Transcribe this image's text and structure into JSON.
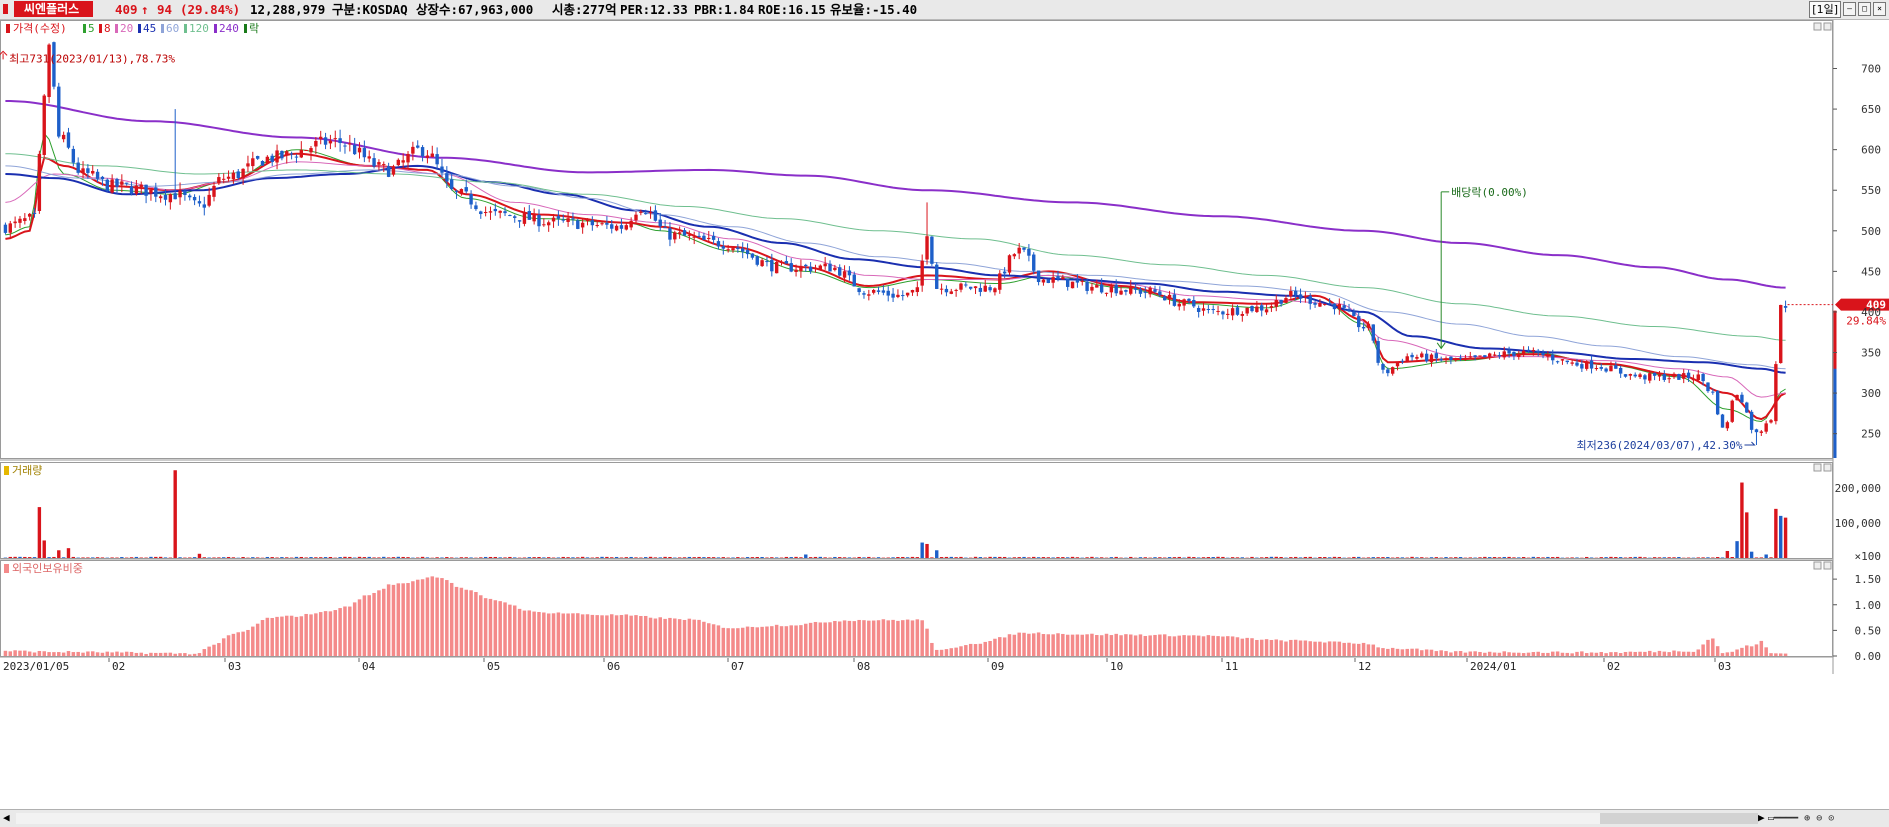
{
  "header": {
    "stock_name": "씨엔플러스",
    "price": "409",
    "change_arrow": "↑",
    "change": "94",
    "change_pct": "(29.84%)",
    "volume": "12,288,979",
    "market": "구분:KOSDAQ",
    "shares": "상장수:67,963,000",
    "market_cap": "시총:277억",
    "per": "PER:12.33",
    "pbr": "PBR:1.84",
    "roe": "ROE:16.15",
    "float": "유보율:-15.40",
    "period": "[1일]"
  },
  "colors": {
    "up": "#d9141b",
    "down": "#1d5fc9",
    "ma5": "#2ea02e",
    "ma8": "#d9141b",
    "ma20": "#d868b9",
    "ma45": "#1a2fb0",
    "ma60": "#8fa4d8",
    "ma120": "#6fbf8f",
    "ma240": "#8a2fc9",
    "foreign": "#f48a8a"
  },
  "price_panel": {
    "legend": [
      {
        "text": "가격(수정)",
        "color": "#d9141b"
      },
      {
        "text": "5",
        "color": "#2ea02e"
      },
      {
        "text": "8",
        "color": "#d9141b"
      },
      {
        "text": "20",
        "color": "#d868b9"
      },
      {
        "text": "45",
        "color": "#1a2fb0"
      },
      {
        "text": "60",
        "color": "#8fa4d8"
      },
      {
        "text": "120",
        "color": "#6fbf8f"
      },
      {
        "text": "240",
        "color": "#8a2fc9"
      },
      {
        "text": "락",
        "color": "#1a7a1a"
      }
    ],
    "high_note": "최고731(2023/01/13),78.73%",
    "low_note": "최저236(2024/03/07),42.30%",
    "dividend_note": "배당락(0.00%)",
    "y_ticks": [
      "700",
      "650",
      "600",
      "550",
      "500",
      "450",
      "400",
      "350",
      "300",
      "250"
    ],
    "last_price_tag": "409",
    "last_pct_tag": "29.84%"
  },
  "volume_panel": {
    "label": "거래량",
    "y_ticks": [
      "200,000",
      "100,000",
      "×100"
    ]
  },
  "foreign_panel": {
    "label": "외국인보유비중",
    "y_ticks": [
      "1.50",
      "1.00",
      "0.50",
      "0.00"
    ]
  },
  "x_ticks": [
    "2023/01/05",
    "02",
    "03",
    "04",
    "05",
    "06",
    "07",
    "08",
    "09",
    "10",
    "11",
    "12",
    "2024/01",
    "02",
    "03"
  ],
  "chart_data": {
    "type": "candlestick",
    "x_range": [
      "2023/01/05",
      "2024/03/13"
    ],
    "price_ylim": [
      220,
      745
    ],
    "volume_ylim": [
      0,
      245000
    ],
    "foreign_ylim": [
      0,
      1.6
    ],
    "price_anchors": [
      [
        0,
        505
      ],
      [
        6,
        515
      ],
      [
        8,
        660
      ],
      [
        9,
        731
      ],
      [
        11,
        615
      ],
      [
        16,
        570
      ],
      [
        22,
        555
      ],
      [
        35,
        545
      ],
      [
        40,
        530
      ],
      [
        45,
        565
      ],
      [
        55,
        590
      ],
      [
        68,
        610
      ],
      [
        79,
        575
      ],
      [
        86,
        600
      ],
      [
        93,
        545
      ],
      [
        101,
        520
      ],
      [
        115,
        510
      ],
      [
        127,
        505
      ],
      [
        131,
        530
      ],
      [
        137,
        495
      ],
      [
        147,
        485
      ],
      [
        160,
        455
      ],
      [
        170,
        455
      ],
      [
        178,
        425
      ],
      [
        185,
        420
      ],
      [
        188,
        425
      ],
      [
        190,
        500
      ],
      [
        192,
        430
      ],
      [
        203,
        430
      ],
      [
        209,
        475
      ],
      [
        214,
        440
      ],
      [
        226,
        430
      ],
      [
        236,
        425
      ],
      [
        243,
        410
      ],
      [
        249,
        400
      ],
      [
        259,
        405
      ],
      [
        265,
        420
      ],
      [
        273,
        410
      ],
      [
        281,
        380
      ],
      [
        284,
        325
      ],
      [
        289,
        345
      ],
      [
        299,
        340
      ],
      [
        313,
        350
      ],
      [
        326,
        335
      ],
      [
        338,
        320
      ],
      [
        349,
        320
      ],
      [
        352,
        300
      ],
      [
        354,
        255
      ],
      [
        357,
        300
      ],
      [
        361,
        250
      ],
      [
        364,
        270
      ],
      [
        366,
        405
      ],
      [
        367,
        409
      ]
    ],
    "ma_anchors": {
      "ma5": [
        [
          0,
          495
        ],
        [
          5,
          505
        ],
        [
          8,
          620
        ],
        [
          12,
          570
        ],
        [
          22,
          550
        ],
        [
          35,
          545
        ],
        [
          45,
          560
        ],
        [
          60,
          600
        ],
        [
          75,
          580
        ],
        [
          87,
          575
        ],
        [
          95,
          540
        ],
        [
          110,
          515
        ],
        [
          128,
          510
        ],
        [
          135,
          500
        ],
        [
          150,
          475
        ],
        [
          165,
          450
        ],
        [
          178,
          430
        ],
        [
          190,
          440
        ],
        [
          205,
          435
        ],
        [
          215,
          445
        ],
        [
          230,
          430
        ],
        [
          245,
          410
        ],
        [
          260,
          405
        ],
        [
          270,
          420
        ],
        [
          280,
          385
        ],
        [
          285,
          330
        ],
        [
          300,
          340
        ],
        [
          315,
          350
        ],
        [
          330,
          335
        ],
        [
          345,
          320
        ],
        [
          355,
          280
        ],
        [
          362,
          265
        ],
        [
          367,
          305
        ]
      ],
      "ma8": [
        [
          0,
          490
        ],
        [
          5,
          500
        ],
        [
          8,
          590
        ],
        [
          12,
          580
        ],
        [
          22,
          555
        ],
        [
          35,
          550
        ],
        [
          45,
          560
        ],
        [
          60,
          595
        ],
        [
          75,
          580
        ],
        [
          87,
          575
        ],
        [
          95,
          545
        ],
        [
          110,
          520
        ],
        [
          128,
          510
        ],
        [
          135,
          505
        ],
        [
          150,
          480
        ],
        [
          165,
          455
        ],
        [
          178,
          432
        ],
        [
          190,
          445
        ],
        [
          205,
          440
        ],
        [
          215,
          450
        ],
        [
          230,
          432
        ],
        [
          245,
          412
        ],
        [
          260,
          410
        ],
        [
          270,
          420
        ],
        [
          280,
          390
        ],
        [
          285,
          338
        ],
        [
          300,
          342
        ],
        [
          315,
          348
        ],
        [
          330,
          336
        ],
        [
          345,
          322
        ],
        [
          355,
          300
        ],
        [
          362,
          268
        ],
        [
          367,
          300
        ]
      ],
      "ma20": [
        [
          0,
          535
        ],
        [
          10,
          570
        ],
        [
          20,
          565
        ],
        [
          35,
          550
        ],
        [
          45,
          560
        ],
        [
          60,
          585
        ],
        [
          75,
          580
        ],
        [
          90,
          570
        ],
        [
          105,
          535
        ],
        [
          120,
          520
        ],
        [
          135,
          510
        ],
        [
          150,
          490
        ],
        [
          165,
          465
        ],
        [
          178,
          445
        ],
        [
          190,
          440
        ],
        [
          205,
          440
        ],
        [
          215,
          445
        ],
        [
          230,
          435
        ],
        [
          245,
          420
        ],
        [
          260,
          415
        ],
        [
          275,
          410
        ],
        [
          285,
          365
        ],
        [
          300,
          345
        ],
        [
          315,
          345
        ],
        [
          330,
          340
        ],
        [
          345,
          330
        ],
        [
          355,
          320
        ],
        [
          362,
          295
        ],
        [
          367,
          300
        ]
      ],
      "ma45": [
        [
          0,
          570
        ],
        [
          10,
          565
        ],
        [
          25,
          545
        ],
        [
          40,
          550
        ],
        [
          55,
          565
        ],
        [
          70,
          570
        ],
        [
          85,
          580
        ],
        [
          100,
          560
        ],
        [
          115,
          545
        ],
        [
          130,
          525
        ],
        [
          145,
          505
        ],
        [
          160,
          485
        ],
        [
          175,
          465
        ],
        [
          190,
          455
        ],
        [
          205,
          445
        ],
        [
          220,
          440
        ],
        [
          235,
          435
        ],
        [
          250,
          425
        ],
        [
          265,
          420
        ],
        [
          280,
          400
        ],
        [
          290,
          370
        ],
        [
          305,
          355
        ],
        [
          320,
          350
        ],
        [
          335,
          342
        ],
        [
          350,
          338
        ],
        [
          362,
          330
        ],
        [
          367,
          325
        ]
      ],
      "ma60": [
        [
          0,
          580
        ],
        [
          15,
          565
        ],
        [
          30,
          555
        ],
        [
          45,
          560
        ],
        [
          60,
          570
        ],
        [
          75,
          575
        ],
        [
          90,
          570
        ],
        [
          105,
          555
        ],
        [
          120,
          540
        ],
        [
          135,
          520
        ],
        [
          150,
          505
        ],
        [
          165,
          485
        ],
        [
          180,
          468
        ],
        [
          195,
          460
        ],
        [
          210,
          450
        ],
        [
          225,
          445
        ],
        [
          240,
          438
        ],
        [
          255,
          432
        ],
        [
          270,
          425
        ],
        [
          285,
          400
        ],
        [
          300,
          385
        ],
        [
          315,
          370
        ],
        [
          330,
          358
        ],
        [
          345,
          345
        ],
        [
          360,
          335
        ],
        [
          367,
          330
        ]
      ],
      "ma120": [
        [
          0,
          595
        ],
        [
          20,
          580
        ],
        [
          40,
          570
        ],
        [
          60,
          575
        ],
        [
          80,
          570
        ],
        [
          100,
          560
        ],
        [
          120,
          545
        ],
        [
          140,
          530
        ],
        [
          160,
          515
        ],
        [
          180,
          500
        ],
        [
          200,
          490
        ],
        [
          220,
          470
        ],
        [
          240,
          458
        ],
        [
          260,
          445
        ],
        [
          280,
          430
        ],
        [
          300,
          410
        ],
        [
          320,
          395
        ],
        [
          340,
          382
        ],
        [
          360,
          370
        ],
        [
          367,
          365
        ]
      ],
      "ma240": [
        [
          0,
          660
        ],
        [
          30,
          635
        ],
        [
          60,
          615
        ],
        [
          90,
          590
        ],
        [
          120,
          572
        ],
        [
          145,
          575
        ],
        [
          165,
          568
        ],
        [
          190,
          550
        ],
        [
          220,
          535
        ],
        [
          250,
          518
        ],
        [
          280,
          500
        ],
        [
          300,
          485
        ],
        [
          320,
          470
        ],
        [
          340,
          455
        ],
        [
          355,
          440
        ],
        [
          367,
          430
        ]
      ]
    },
    "volume_spikes": [
      [
        7,
        145000
      ],
      [
        8,
        50000
      ],
      [
        11,
        22000
      ],
      [
        13,
        28000
      ],
      [
        35,
        250000
      ],
      [
        40,
        12000
      ],
      [
        165,
        10000
      ],
      [
        189,
        44000
      ],
      [
        190,
        40000
      ],
      [
        192,
        22000
      ],
      [
        355,
        20000
      ],
      [
        357,
        48000
      ],
      [
        358,
        215000
      ],
      [
        359,
        130000
      ],
      [
        360,
        18000
      ],
      [
        363,
        10000
      ],
      [
        365,
        140000
      ],
      [
        366,
        120000
      ],
      [
        367,
        115000
      ]
    ],
    "foreign_anchors": [
      [
        0,
        0.1
      ],
      [
        10,
        0.08
      ],
      [
        40,
        0.05
      ],
      [
        42,
        0.2
      ],
      [
        48,
        0.45
      ],
      [
        55,
        0.75
      ],
      [
        60,
        0.78
      ],
      [
        65,
        0.85
      ],
      [
        70,
        0.95
      ],
      [
        75,
        1.2
      ],
      [
        80,
        1.4
      ],
      [
        89,
        1.55
      ],
      [
        95,
        1.3
      ],
      [
        100,
        1.1
      ],
      [
        110,
        0.85
      ],
      [
        125,
        0.8
      ],
      [
        140,
        0.72
      ],
      [
        150,
        0.55
      ],
      [
        160,
        0.6
      ],
      [
        175,
        0.7
      ],
      [
        189,
        0.7
      ],
      [
        192,
        0.1
      ],
      [
        200,
        0.25
      ],
      [
        210,
        0.45
      ],
      [
        225,
        0.42
      ],
      [
        245,
        0.4
      ],
      [
        265,
        0.3
      ],
      [
        280,
        0.25
      ],
      [
        285,
        0.15
      ],
      [
        300,
        0.08
      ],
      [
        330,
        0.07
      ],
      [
        348,
        0.1
      ],
      [
        352,
        0.35
      ],
      [
        354,
        0.05
      ],
      [
        360,
        0.2
      ],
      [
        362,
        0.28
      ],
      [
        364,
        0.05
      ],
      [
        367,
        0.05
      ]
    ]
  }
}
